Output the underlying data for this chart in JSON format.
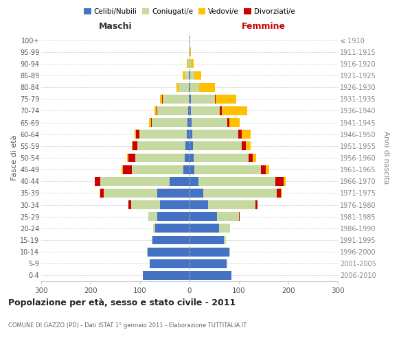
{
  "age_groups": [
    "0-4",
    "5-9",
    "10-14",
    "15-19",
    "20-24",
    "25-29",
    "30-34",
    "35-39",
    "40-44",
    "45-49",
    "50-54",
    "55-59",
    "60-64",
    "65-69",
    "70-74",
    "75-79",
    "80-84",
    "85-89",
    "90-94",
    "95-99",
    "100+"
  ],
  "birth_years": [
    "2006-2010",
    "2001-2005",
    "1996-2000",
    "1991-1995",
    "1986-1990",
    "1981-1985",
    "1976-1980",
    "1971-1975",
    "1966-1970",
    "1961-1965",
    "1956-1960",
    "1951-1955",
    "1946-1950",
    "1941-1945",
    "1936-1940",
    "1931-1935",
    "1926-1930",
    "1921-1925",
    "1916-1920",
    "1911-1915",
    "≤ 1910"
  ],
  "male_celibi": [
    95,
    80,
    85,
    75,
    70,
    65,
    60,
    65,
    40,
    12,
    10,
    8,
    6,
    4,
    3,
    2,
    2,
    2,
    0,
    0,
    0
  ],
  "male_coniugati": [
    0,
    0,
    1,
    2,
    4,
    18,
    58,
    108,
    140,
    105,
    100,
    98,
    95,
    72,
    62,
    52,
    20,
    8,
    3,
    1,
    1
  ],
  "male_vedovi": [
    0,
    0,
    0,
    0,
    0,
    0,
    1,
    1,
    1,
    2,
    2,
    2,
    2,
    4,
    4,
    4,
    5,
    4,
    2,
    0,
    0
  ],
  "male_divorziati": [
    0,
    0,
    0,
    0,
    0,
    0,
    5,
    8,
    11,
    18,
    14,
    9,
    8,
    2,
    2,
    2,
    0,
    0,
    0,
    0,
    0
  ],
  "female_nubili": [
    85,
    75,
    80,
    70,
    60,
    55,
    38,
    28,
    18,
    10,
    9,
    7,
    6,
    4,
    3,
    3,
    2,
    2,
    0,
    0,
    0
  ],
  "female_coniugate": [
    0,
    1,
    2,
    4,
    22,
    45,
    95,
    148,
    155,
    135,
    110,
    98,
    93,
    72,
    58,
    48,
    18,
    8,
    3,
    1,
    0
  ],
  "female_vedove": [
    0,
    0,
    0,
    0,
    0,
    0,
    1,
    2,
    4,
    7,
    7,
    10,
    18,
    22,
    52,
    42,
    32,
    14,
    5,
    2,
    0
  ],
  "female_divorziate": [
    0,
    0,
    0,
    0,
    0,
    1,
    4,
    9,
    17,
    9,
    9,
    9,
    7,
    4,
    4,
    2,
    0,
    0,
    0,
    0,
    0
  ],
  "colors_celibi": "#4472c4",
  "colors_coniugati": "#c5d9a0",
  "colors_vedovi": "#ffc000",
  "colors_divorziati": "#cc0000",
  "title": "Popolazione per età, sesso e stato civile - 2011",
  "subtitle": "COMUNE DI GAZZO (PD) - Dati ISTAT 1° gennaio 2011 - Elaborazione TUTTITALIA.IT",
  "ylabel_left": "Fasce di età",
  "ylabel_right": "Anni di nascita",
  "xlim": 300,
  "legend_labels": [
    "Celibi/Nubili",
    "Coniugati/e",
    "Vedovi/e",
    "Divorziati/e"
  ],
  "bg_color": "#ffffff",
  "grid_color": "#cccccc",
  "maschi_color": "#333333",
  "femmine_color": "#cc0000"
}
